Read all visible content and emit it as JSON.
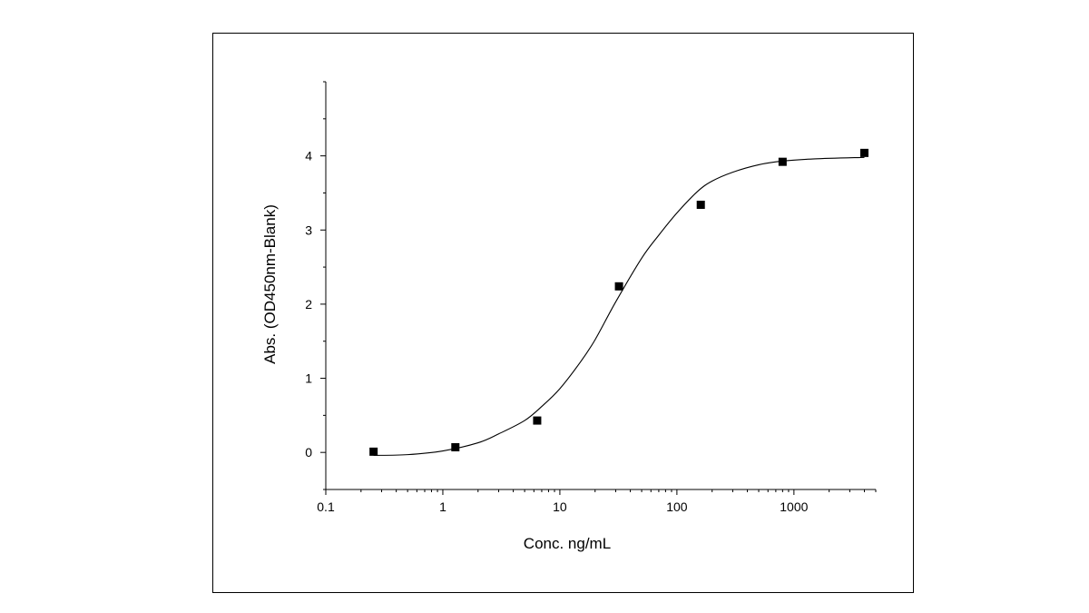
{
  "chart_data": {
    "type": "scatter",
    "title": "",
    "xlabel": "Conc. ng/mL",
    "ylabel": "Abs. (OD450nm-Blank)",
    "x_scale": "log",
    "xlim": [
      0.1,
      5000
    ],
    "ylim": [
      -0.5,
      5
    ],
    "x_ticks": [
      0.1,
      1,
      10,
      100,
      1000
    ],
    "x_tick_labels": [
      "0.1",
      "1",
      "10",
      "100",
      "1000"
    ],
    "y_ticks": [
      0,
      1,
      2,
      3,
      4
    ],
    "y_tick_labels": [
      "0",
      "1",
      "2",
      "3",
      "4"
    ],
    "grid": false,
    "legend": "none",
    "series": [
      {
        "kind": "points",
        "marker": "square",
        "x": [
          0.256,
          1.28,
          6.4,
          32,
          160,
          800,
          4000
        ],
        "y": [
          0.01,
          0.07,
          0.43,
          2.24,
          3.34,
          3.92,
          4.04
        ]
      },
      {
        "kind": "fit-curve",
        "x": [
          0.256,
          0.5,
          1,
          2,
          3,
          5,
          7,
          10,
          15,
          20,
          30,
          50,
          70,
          100,
          150,
          200,
          300,
          500,
          800,
          1500,
          4000
        ],
        "y": [
          -0.04,
          -0.03,
          0.02,
          0.13,
          0.25,
          0.43,
          0.62,
          0.86,
          1.22,
          1.52,
          2.03,
          2.62,
          2.93,
          3.23,
          3.52,
          3.66,
          3.78,
          3.88,
          3.93,
          3.96,
          3.98
        ]
      }
    ],
    "colors": {
      "axis": "#000000",
      "marker": "#000000",
      "curve": "#000000"
    }
  }
}
